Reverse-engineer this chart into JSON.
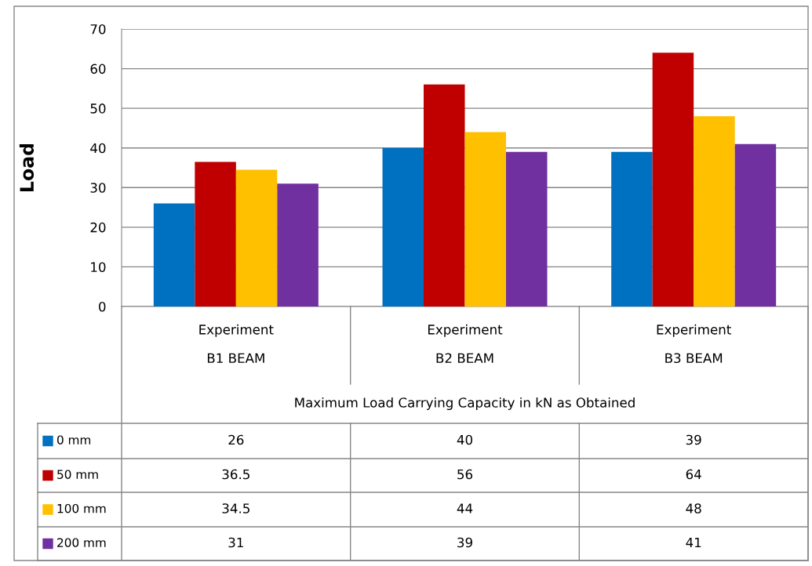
{
  "chart_data": {
    "type": "bar",
    "ylabel": "Load",
    "annotations": [
      "Maximum Load Carrying Capacity in kN as Obtained"
    ],
    "categories": [
      "Experiment\nB1 BEAM",
      "Experiment\nB2 BEAM",
      "Experiment\nB3 BEAM"
    ],
    "series": [
      {
        "name": "0 mm",
        "color": "#0070c0",
        "values": [
          26,
          40,
          39
        ]
      },
      {
        "name": "50 mm",
        "color": "#c00000",
        "values": [
          36.5,
          56,
          64
        ]
      },
      {
        "name": "100 mm",
        "color": "#ffc000",
        "values": [
          34.5,
          44,
          48
        ]
      },
      {
        "name": "200 mm",
        "color": "#7030a0",
        "values": [
          31,
          39,
          41
        ]
      }
    ],
    "ylim": [
      0,
      70
    ],
    "yticks": [
      0,
      10,
      20,
      30,
      40,
      50,
      60,
      70
    ],
    "grid": "y",
    "data_labels": true,
    "legend": "bottom left"
  }
}
